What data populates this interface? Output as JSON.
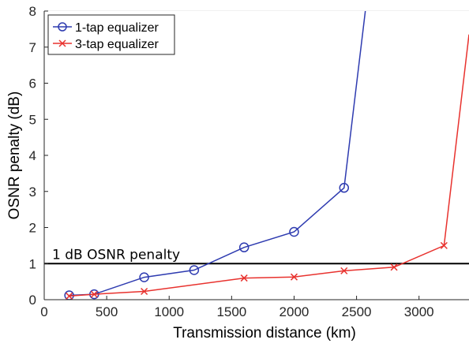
{
  "chart_data": {
    "type": "line",
    "title": "",
    "xlabel": "Transmission distance (km)",
    "ylabel": "OSNR penalty (dB)",
    "xlim": [
      0,
      3400
    ],
    "ylim": [
      0,
      8
    ],
    "xticks": [
      0,
      500,
      1000,
      1500,
      2000,
      2500,
      3000
    ],
    "yticks": [
      0,
      1,
      2,
      3,
      4,
      5,
      6,
      7,
      8
    ],
    "grid": true,
    "legend_position": "top-left",
    "series": [
      {
        "name": "1-tap equalizer",
        "color": "#2e3bb0",
        "marker": "circle",
        "points": [
          [
            200,
            0.12
          ],
          [
            400,
            0.15
          ],
          [
            800,
            0.62
          ],
          [
            1200,
            0.82
          ],
          [
            1600,
            1.45
          ],
          [
            2000,
            1.88
          ],
          [
            2400,
            3.1
          ]
        ],
        "tail": [
          [
            2570,
            8.0
          ]
        ]
      },
      {
        "name": "3-tap equalizer",
        "color": "#e8322e",
        "marker": "x",
        "points": [
          [
            200,
            0.1
          ],
          [
            400,
            0.15
          ],
          [
            800,
            0.23
          ],
          [
            1600,
            0.6
          ],
          [
            2000,
            0.63
          ],
          [
            2400,
            0.8
          ],
          [
            2800,
            0.9
          ],
          [
            3200,
            1.5
          ]
        ],
        "tail": [
          [
            3400,
            7.35
          ]
        ]
      }
    ],
    "reference_line": {
      "y": 1,
      "label": "1 dB OSNR penalty",
      "color": "#000000"
    }
  }
}
